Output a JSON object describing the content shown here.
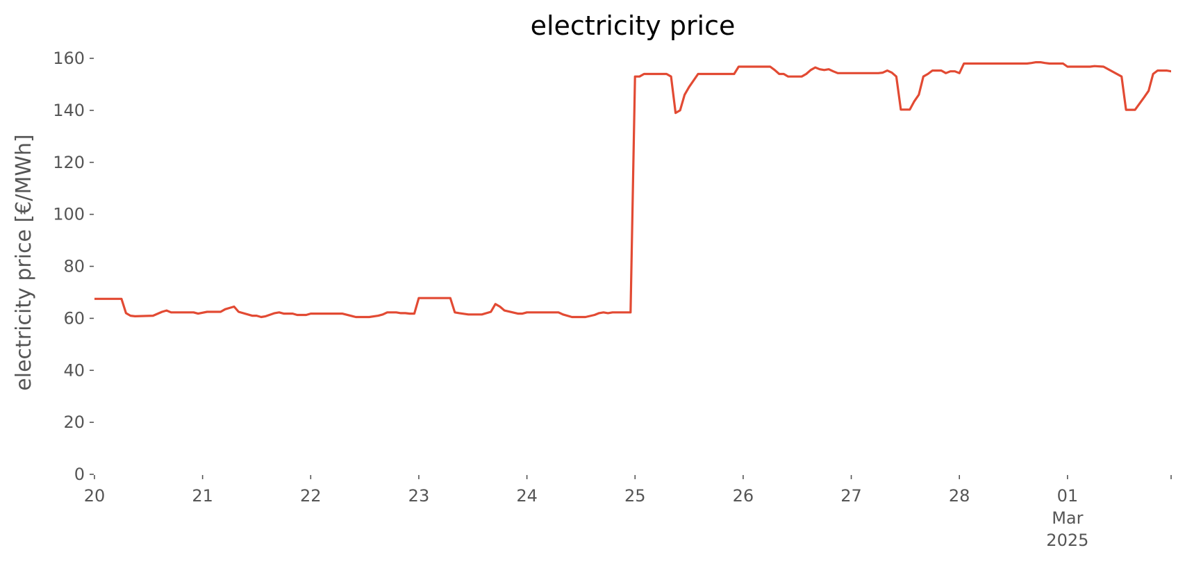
{
  "chart_data": {
    "type": "line",
    "title": "electricity price",
    "xlabel": "",
    "ylabel": "electricity price [€/MWh]",
    "ylim": [
      0,
      165
    ],
    "yticks": [
      0,
      20,
      40,
      60,
      80,
      100,
      120,
      140,
      160
    ],
    "xlim": [
      0,
      239
    ],
    "xticks": [
      {
        "x": 0,
        "lines": [
          "20"
        ]
      },
      {
        "x": 24,
        "lines": [
          "21"
        ]
      },
      {
        "x": 48,
        "lines": [
          "22"
        ]
      },
      {
        "x": 72,
        "lines": [
          "23"
        ]
      },
      {
        "x": 96,
        "lines": [
          "24"
        ]
      },
      {
        "x": 120,
        "lines": [
          "25"
        ]
      },
      {
        "x": 144,
        "lines": [
          "26"
        ]
      },
      {
        "x": 168,
        "lines": [
          "27"
        ]
      },
      {
        "x": 192,
        "lines": [
          "28"
        ]
      },
      {
        "x": 216,
        "lines": [
          "01",
          "Mar",
          "2025"
        ]
      },
      {
        "x": 239,
        "lines": [
          ""
        ]
      }
    ],
    "x_unit": "hours since 2025-02-20 00:00",
    "grid": false,
    "colors": {
      "series": "#E24A33",
      "text": "#555555"
    },
    "series": [
      {
        "name": "",
        "points": [
          [
            0,
            67.5
          ],
          [
            6,
            67.5
          ],
          [
            7,
            62
          ],
          [
            8,
            61
          ],
          [
            9,
            60.8
          ],
          [
            13,
            61
          ],
          [
            15,
            62.5
          ],
          [
            16,
            63
          ],
          [
            17,
            62.3
          ],
          [
            22,
            62.3
          ],
          [
            23,
            61.8
          ],
          [
            25,
            62.5
          ],
          [
            28,
            62.5
          ],
          [
            29,
            63.5
          ],
          [
            30,
            64
          ],
          [
            31,
            64.5
          ],
          [
            32,
            62.5
          ],
          [
            35,
            61
          ],
          [
            36,
            61
          ],
          [
            37,
            60.5
          ],
          [
            38,
            60.8
          ],
          [
            40,
            62
          ],
          [
            41,
            62.3
          ],
          [
            42,
            61.8
          ],
          [
            44,
            61.8
          ],
          [
            45,
            61.3
          ],
          [
            47,
            61.3
          ],
          [
            48,
            61.8
          ],
          [
            55,
            61.8
          ],
          [
            58,
            60.5
          ],
          [
            61,
            60.5
          ],
          [
            63,
            61
          ],
          [
            64,
            61.5
          ],
          [
            65,
            62.3
          ],
          [
            67,
            62.3
          ],
          [
            68,
            62
          ],
          [
            69,
            62
          ],
          [
            70,
            61.8
          ],
          [
            71,
            61.8
          ],
          [
            72,
            67.8
          ],
          [
            79,
            67.8
          ],
          [
            80,
            62.3
          ],
          [
            81,
            62
          ],
          [
            83,
            61.5
          ],
          [
            86,
            61.5
          ],
          [
            88,
            62.5
          ],
          [
            89,
            65.5
          ],
          [
            90,
            64.5
          ],
          [
            91,
            63
          ],
          [
            94,
            61.8
          ],
          [
            95,
            61.8
          ],
          [
            96,
            62.3
          ],
          [
            103,
            62.3
          ],
          [
            104,
            61.5
          ],
          [
            106,
            60.5
          ],
          [
            109,
            60.5
          ],
          [
            111,
            61.3
          ],
          [
            112,
            62
          ],
          [
            113,
            62.3
          ],
          [
            114,
            62
          ],
          [
            115,
            62.3
          ],
          [
            119,
            62.3
          ],
          [
            120,
            153
          ],
          [
            121,
            153
          ],
          [
            122,
            154
          ],
          [
            127,
            154
          ],
          [
            128,
            153
          ],
          [
            129,
            139
          ],
          [
            130,
            140
          ],
          [
            131,
            146
          ],
          [
            132,
            149
          ],
          [
            134,
            154
          ],
          [
            142,
            154
          ],
          [
            143,
            156.8
          ],
          [
            150,
            156.8
          ],
          [
            151,
            155.5
          ],
          [
            152,
            154
          ],
          [
            153,
            154
          ],
          [
            154,
            153
          ],
          [
            157,
            153
          ],
          [
            158,
            154
          ],
          [
            159,
            155.5
          ],
          [
            160,
            156.5
          ],
          [
            161,
            155.8
          ],
          [
            162,
            155.5
          ],
          [
            163,
            155.8
          ],
          [
            164,
            155
          ],
          [
            165,
            154.3
          ],
          [
            174,
            154.3
          ],
          [
            175,
            154.5
          ],
          [
            176,
            155.3
          ],
          [
            177,
            154.5
          ],
          [
            178,
            153
          ],
          [
            179,
            140.3
          ],
          [
            181,
            140.3
          ],
          [
            182,
            143.5
          ],
          [
            183,
            146
          ],
          [
            184,
            153
          ],
          [
            185,
            154
          ],
          [
            186,
            155.3
          ],
          [
            188,
            155.3
          ],
          [
            189,
            154.3
          ],
          [
            190,
            155
          ],
          [
            191,
            155
          ],
          [
            192,
            154.3
          ],
          [
            193,
            158
          ],
          [
            202,
            158
          ],
          [
            207,
            158
          ],
          [
            208,
            158.2
          ],
          [
            209,
            158.5
          ],
          [
            210,
            158.5
          ],
          [
            211,
            158.2
          ],
          [
            212,
            158
          ],
          [
            215,
            158
          ],
          [
            216,
            156.8
          ],
          [
            221,
            156.8
          ],
          [
            222,
            157
          ],
          [
            224,
            156.8
          ],
          [
            228,
            153
          ],
          [
            229,
            140.2
          ],
          [
            231,
            140.2
          ],
          [
            233,
            145
          ],
          [
            234,
            147.5
          ],
          [
            235,
            154
          ],
          [
            236,
            155.3
          ],
          [
            238,
            155.3
          ],
          [
            239,
            155
          ],
          [
            240,
            155.2
          ],
          [
            241,
            155.2
          ],
          [
            242,
            154
          ]
        ]
      }
    ]
  }
}
